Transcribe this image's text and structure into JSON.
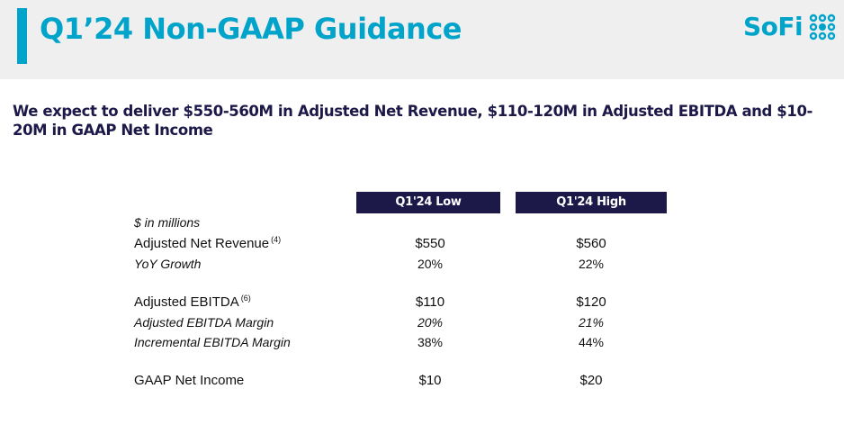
{
  "header": {
    "title": "Q1’24 Non-GAAP Guidance",
    "logo_text": "SoFi",
    "accent_color": "#00a3c9"
  },
  "headline": "We expect to deliver $550-560M in Adjusted Net Revenue, $110-120M in Adjusted EBITDA and $10-20M in GAAP Net Income",
  "table": {
    "unit_label": "$ in millions",
    "header_color": "#1c1848",
    "columns": [
      "Q1'24 Low",
      "Q1'24 High"
    ],
    "rows": [
      {
        "label": "Adjusted Net Revenue",
        "footnote": "(4)",
        "low": "$550",
        "high": "$560"
      },
      {
        "label": "YoY Growth",
        "footnote": "",
        "low": "20%",
        "high": "22%"
      },
      {
        "label": "Adjusted EBITDA",
        "footnote": "(6)",
        "low": "$110",
        "high": "$120"
      },
      {
        "label": "Adjusted EBITDA Margin",
        "footnote": "",
        "low": "20%",
        "high": "21%"
      },
      {
        "label": "Incremental EBITDA Margin",
        "footnote": "",
        "low": "38%",
        "high": "44%"
      },
      {
        "label": "GAAP Net Income",
        "footnote": "",
        "low": "$10",
        "high": "$20"
      }
    ]
  }
}
